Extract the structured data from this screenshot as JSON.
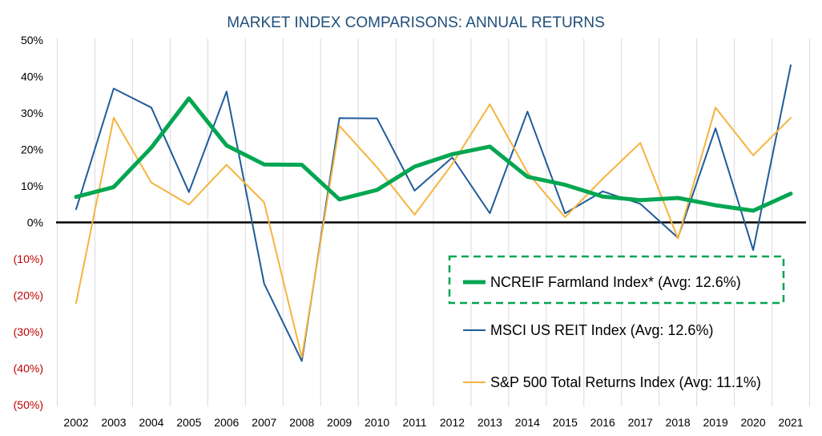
{
  "chart_data": {
    "type": "line",
    "title": "MARKET INDEX COMPARISONS: ANNUAL RETURNS",
    "xlabel": "",
    "ylabel": "",
    "x": [
      "2002",
      "2003",
      "2004",
      "2005",
      "2006",
      "2007",
      "2008",
      "2009",
      "2010",
      "2011",
      "2012",
      "2013",
      "2014",
      "2015",
      "2016",
      "2017",
      "2018",
      "2019",
      "2020",
      "2021"
    ],
    "ylim": [
      -50,
      50
    ],
    "yticks": [
      50,
      40,
      30,
      20,
      10,
      0,
      -10,
      -20,
      -30,
      -40,
      -50
    ],
    "ytick_labels": [
      "50%",
      "40%",
      "30%",
      "20%",
      "10%",
      "0%",
      "(10%)",
      "(20%)",
      "(30%)",
      "(40%)",
      "(50%)"
    ],
    "grid": "vertical",
    "legend_position": "bottom-right",
    "colors": {
      "title": "#1f4e79",
      "negative_ticks": "#c00000",
      "axis": "#000000",
      "grid": "#d9d9d9",
      "highlight_box": "#00a651"
    },
    "series": [
      {
        "name": "NCREIF Farmland Index* (Avg: 12.6%)",
        "color": "#00a651",
        "width": 5,
        "values": [
          7.0,
          9.7,
          20.5,
          34.0,
          21.1,
          15.9,
          15.8,
          6.3,
          8.9,
          15.3,
          18.7,
          20.8,
          12.5,
          10.3,
          7.1,
          6.1,
          6.7,
          4.7,
          3.2,
          7.9
        ]
      },
      {
        "name": "MSCI US REIT Index (Avg: 12.6%)",
        "color": "#1f5c99",
        "width": 2,
        "values": [
          3.6,
          36.7,
          31.5,
          8.3,
          35.9,
          -16.8,
          -38.0,
          28.6,
          28.5,
          8.7,
          17.8,
          2.5,
          30.4,
          2.5,
          8.5,
          5.1,
          -4.2,
          25.8,
          -7.6,
          43.1
        ]
      },
      {
        "name": "S&P 500 Total Returns Index (Avg: 11.1%)",
        "color": "#f6b33d",
        "width": 2,
        "values": [
          -22.1,
          28.7,
          10.9,
          4.9,
          15.8,
          5.5,
          -37.0,
          26.5,
          15.1,
          2.1,
          16.0,
          32.4,
          13.7,
          1.4,
          12.0,
          21.8,
          -4.4,
          31.5,
          18.4,
          28.7
        ]
      }
    ]
  }
}
